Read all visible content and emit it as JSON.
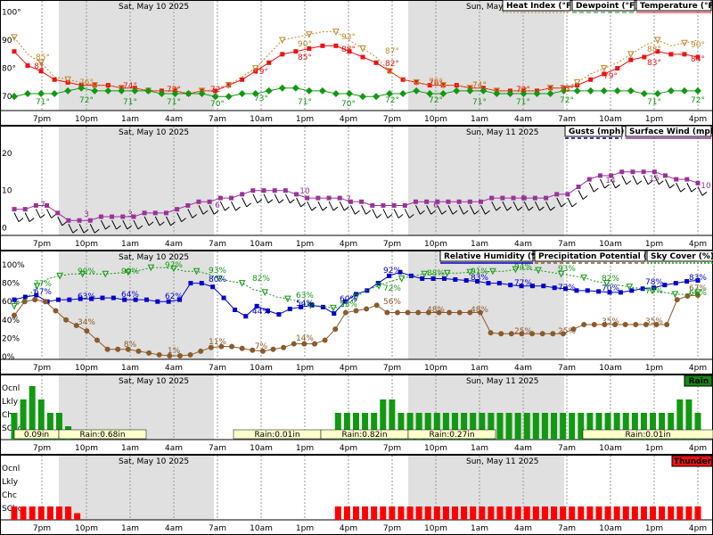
{
  "chart_data": [
    {
      "type": "line",
      "panel": "temperature",
      "date_labels": [
        "Sat, May 10 2025",
        "Sun, May"
      ],
      "legend": [
        "Heat Index (°F)",
        "Dewpoint (°F)",
        "Temperature (°F)"
      ],
      "y_ticks": [
        "100°",
        "90°",
        "80°",
        "70°"
      ],
      "ylim": [
        65,
        103
      ],
      "series": [
        {
          "name": "Temperature (°F)",
          "color": "#ee1111",
          "values": [
            86,
            81,
            79,
            76,
            75,
            74,
            74,
            74,
            73,
            73,
            72,
            72,
            72,
            71,
            72,
            72,
            74,
            76,
            79,
            82,
            85,
            86,
            87,
            88,
            88,
            86,
            84,
            82,
            79,
            76,
            75,
            74,
            74,
            74,
            73,
            73,
            72,
            72,
            72,
            72,
            73,
            73,
            74,
            76,
            78,
            80,
            83,
            84,
            86,
            85,
            85,
            84
          ]
        },
        {
          "name": "Heat Index (°F)",
          "color": "#c08a2a",
          "values": [
            91,
            85,
            82,
            77,
            76,
            75,
            74,
            74,
            73,
            73,
            72,
            72,
            72,
            71,
            72,
            72,
            74,
            77,
            80,
            85,
            90,
            91,
            92,
            93,
            93,
            90,
            87,
            84,
            79,
            76,
            75,
            74,
            74,
            74,
            73,
            73,
            72,
            72,
            72,
            72,
            73,
            73,
            75,
            78,
            80,
            82,
            85,
            88,
            90,
            88,
            89,
            90
          ]
        },
        {
          "name": "Dewpoint (°F)",
          "color": "#119911",
          "values": [
            70,
            71,
            71,
            71,
            72,
            73,
            72,
            72,
            72,
            72,
            72,
            71,
            71,
            71,
            71,
            70,
            70,
            71,
            71,
            72,
            73,
            73,
            72,
            72,
            71,
            71,
            70,
            70,
            71,
            71,
            72,
            71,
            71,
            72,
            72,
            72,
            71,
            71,
            71,
            71,
            71,
            72,
            72,
            72,
            72,
            72,
            72,
            71,
            71,
            72,
            72,
            72
          ]
        }
      ],
      "value_labels": [
        {
          "series": "Temperature (°F)",
          "labels": [
            "81",
            "74°",
            "72°",
            "72°",
            "79°",
            "85°",
            "88°",
            "82°",
            "76°",
            "74°",
            "72°",
            "73°",
            "79°",
            "83°",
            "84°"
          ]
        },
        {
          "series": "Heat Index (°F)",
          "labels": [
            "85°",
            "76°",
            "90°",
            "93°",
            "87°",
            "76°",
            "74°",
            "72°",
            "88°",
            "90°"
          ]
        },
        {
          "series": "Dewpoint (°F)",
          "labels": [
            "71°",
            "72°",
            "71°",
            "71°",
            "70°",
            "73°",
            "71°",
            "70°",
            "72°",
            "72°",
            "71°",
            "71°",
            "72°",
            "71°",
            "72°"
          ]
        }
      ]
    },
    {
      "type": "line",
      "panel": "wind",
      "date_labels": [
        "Sat, May 10 2025",
        "Sun, May 11 2025"
      ],
      "legend": [
        "Gusts (mph)",
        "Surface Wind (mph)"
      ],
      "y_ticks": [
        "20",
        "10",
        "0"
      ],
      "ylim": [
        -2,
        24
      ],
      "series": [
        {
          "name": "Surface Wind (mph)",
          "color": "#993399",
          "values": [
            5,
            5,
            6,
            6,
            4,
            2,
            2,
            2,
            3,
            3,
            3,
            3,
            4,
            4,
            4,
            5,
            6,
            7,
            7,
            8,
            8,
            9,
            10,
            10,
            10,
            10,
            9,
            8,
            8,
            8,
            8,
            7,
            7,
            6,
            6,
            6,
            6,
            7,
            7,
            7,
            7,
            7,
            7,
            7,
            8,
            8,
            8,
            8,
            8,
            8,
            9,
            9,
            11,
            13,
            14,
            14,
            15,
            15,
            15,
            15,
            14,
            13,
            13,
            12
          ]
        },
        {
          "name": "Gusts (mph)",
          "color": "#000080",
          "values": []
        }
      ],
      "value_labels": [
        "7",
        "3",
        "3",
        "6",
        "10",
        "7",
        "6",
        "6",
        "14",
        "15",
        "10"
      ]
    },
    {
      "type": "line",
      "panel": "humidity",
      "date_labels": [
        "Sat, May 10 2025",
        "Sun, May 11 2025"
      ],
      "legend": [
        "Relative Humidity (%)",
        "Precipitation Potential (%)",
        "Sky Cover (%)"
      ],
      "y_ticks": [
        "100%",
        "80%",
        "60%",
        "40%",
        "20%",
        "0%"
      ],
      "ylim": [
        0,
        100
      ],
      "series": [
        {
          "name": "Relative Humidity (%)",
          "color": "#0000cc",
          "values": [
            62,
            65,
            67,
            60,
            62,
            62,
            63,
            63,
            64,
            64,
            62,
            62,
            62,
            60,
            60,
            62,
            80,
            80,
            76,
            64,
            51,
            44,
            55,
            50,
            46,
            52,
            54,
            56,
            54,
            47,
            60,
            68,
            72,
            80,
            88,
            92,
            88,
            85,
            85,
            85,
            84,
            83,
            82,
            80,
            80,
            78,
            77,
            77,
            77,
            75,
            74,
            72,
            72,
            71,
            70,
            70,
            72,
            74,
            75,
            78,
            80,
            82,
            83
          ]
        },
        {
          "name": "Precipitation Potential (%)",
          "color": "#8b5a2b",
          "values": [
            45,
            60,
            62,
            60,
            50,
            40,
            34,
            28,
            18,
            8,
            8,
            8,
            6,
            4,
            2,
            1,
            1,
            2,
            6,
            10,
            11,
            11,
            9,
            7,
            6,
            8,
            10,
            14,
            14,
            14,
            18,
            30,
            48,
            50,
            52,
            56,
            48,
            48,
            48,
            48,
            48,
            48,
            48,
            48,
            48,
            48,
            26,
            25,
            25,
            25,
            25,
            25,
            25,
            25,
            30,
            35,
            35,
            35,
            35,
            35,
            35,
            35,
            35,
            35,
            62,
            66,
            67
          ]
        },
        {
          "name": "Sky Cover (%)",
          "color": "#119911",
          "values": [
            55,
            62,
            77,
            85,
            88,
            90,
            90,
            90,
            90,
            91,
            92,
            94,
            97,
            97,
            96,
            93,
            93,
            90,
            85,
            82,
            80,
            73,
            70,
            65,
            63,
            60,
            56,
            55,
            53,
            55,
            65,
            73,
            77,
            82,
            85,
            88,
            90,
            90,
            91,
            91,
            92,
            92,
            93,
            93,
            95,
            95,
            94,
            92,
            90,
            88,
            86,
            82,
            80,
            78,
            76,
            74,
            72,
            70,
            68,
            68,
            70
          ]
        }
      ],
      "value_labels": [
        {
          "series": "Relative Humidity (%)",
          "labels": [
            "67%",
            "63%",
            "64%",
            "62%",
            "80%",
            "44%",
            "54%",
            "60%",
            "92%",
            "83%",
            "77%",
            "72%",
            "70%",
            "78%",
            "83%"
          ]
        },
        {
          "series": "Precipitation Potential (%)",
          "labels": [
            "34%",
            "8%",
            "1%",
            "11%",
            "7%",
            "14%",
            "56%",
            "48%",
            "48%",
            "25%",
            "25%",
            "35%",
            "35%",
            "67%"
          ]
        },
        {
          "series": "Sky Cover (%)",
          "labels": [
            "77%",
            "90%",
            "90%",
            "97%",
            "93%",
            "82%",
            "63%",
            "55%",
            "72%",
            "88%",
            "91%",
            "94%",
            "93%",
            "82%",
            "73%",
            "66%"
          ]
        }
      ]
    },
    {
      "type": "bar",
      "panel": "rain",
      "date_labels": [
        "Sat, May 10 2025",
        "Sun, May 11 2025"
      ],
      "legend": [
        "Rain"
      ],
      "y_ticks": [
        "Ocnl",
        "Lkly",
        "Chc",
        "SChc"
      ],
      "levels": [
        2,
        3,
        4,
        3,
        2,
        2,
        1,
        0,
        0,
        0,
        0,
        0,
        0,
        0,
        0,
        0,
        0,
        0,
        0,
        0,
        0,
        0,
        0,
        0,
        0,
        0,
        0,
        0,
        0,
        0,
        0,
        0,
        0,
        0,
        0,
        0,
        2,
        2,
        2,
        2,
        2,
        3,
        3,
        2,
        2,
        2,
        2,
        2,
        2,
        2,
        2,
        2,
        2,
        2,
        2,
        2,
        2,
        2,
        2,
        2,
        2,
        2,
        2,
        2,
        2,
        2,
        2,
        2,
        2,
        2,
        2,
        2,
        2,
        2,
        3,
        3,
        2
      ],
      "amounts": [
        "0.09in",
        "Rain:0.68in",
        "Rain:0.01in",
        "Rain:0.82in",
        "Rain:0.27in",
        "Rain:0.01in"
      ]
    },
    {
      "type": "bar",
      "panel": "thunder",
      "date_labels": [
        "Sat, May 10 2025",
        "Sun, May 11 2025"
      ],
      "legend": [
        "Thunder"
      ],
      "y_ticks": [
        "Ocnl",
        "Lkly",
        "Chc",
        "SChc"
      ],
      "levels": [
        1,
        1,
        1,
        1,
        1,
        1,
        1,
        0.5,
        0,
        0,
        0,
        0,
        0,
        0,
        0,
        0,
        0,
        0,
        0,
        0,
        0,
        0,
        0,
        0,
        0,
        0,
        0,
        0,
        0,
        0,
        0,
        0,
        0,
        0,
        0,
        0,
        1,
        1,
        1,
        1,
        1,
        1,
        1,
        1,
        1,
        1,
        1,
        1,
        1,
        1,
        1,
        1,
        1,
        1,
        1,
        1,
        1,
        1,
        1,
        1,
        1,
        1,
        1,
        1,
        1,
        1,
        1,
        1,
        1,
        1,
        1,
        1,
        1,
        1,
        1,
        1,
        1
      ]
    }
  ],
  "x_axis": {
    "ticks": [
      "7pm",
      "10pm",
      "1am",
      "4am",
      "7am",
      "10am",
      "1pm",
      "4pm",
      "7pm",
      "10pm",
      "1am",
      "4am",
      "7am",
      "10am",
      "1pm",
      "4pm"
    ]
  },
  "colors": {
    "night_shade": "#e0e0e0",
    "grid": "#999999",
    "rain_legend_bg": "#118811",
    "thunder_legend_bg": "#ee1111",
    "rain_bar": "#119911",
    "thunder_bar": "#ff0000",
    "rain_amount_bg": "#ffffcc"
  }
}
